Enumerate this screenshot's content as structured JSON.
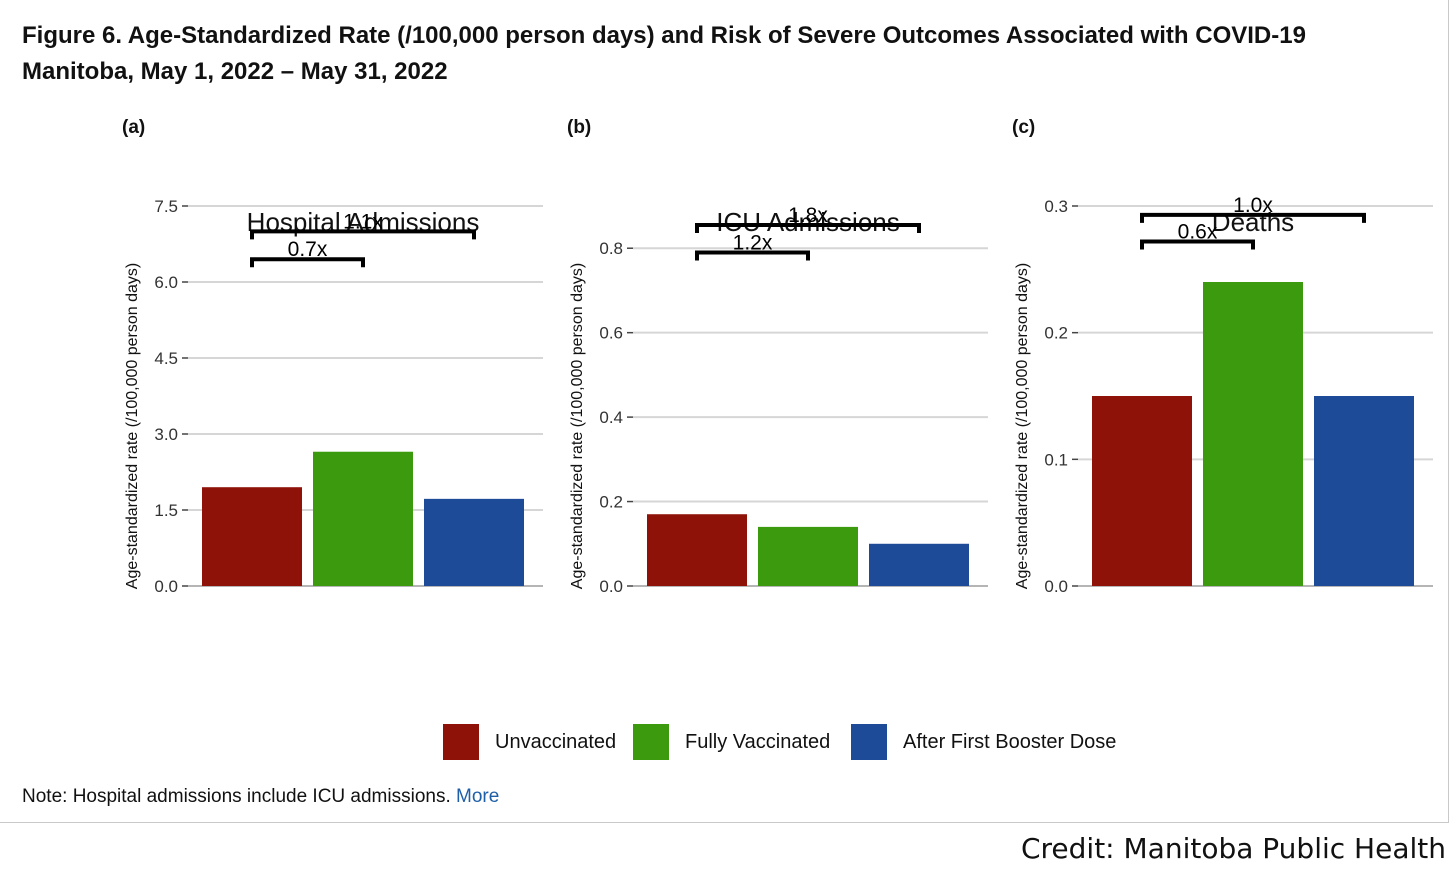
{
  "figure": {
    "title_line1": "Figure 6. Age-Standardized Rate (/100,000 person days) and Risk of Severe Outcomes Associated with COVID-19",
    "title_line2": "Manitoba, May 1, 2022 – May 31, 2022"
  },
  "legend": [
    {
      "label": "Unvaccinated",
      "color": "#8f1209"
    },
    {
      "label": "Fully Vaccinated",
      "color": "#3c9a0f"
    },
    {
      "label": "After First Booster Dose",
      "color": "#1d4b98"
    }
  ],
  "note": {
    "text": "Note: Hospital admissions include ICU admissions.",
    "link": "More"
  },
  "credit": "Credit: Manitoba Public Health",
  "chart_data": [
    {
      "type": "bar",
      "panel": "(a)",
      "title": "Hospital Admissions",
      "ylabel": "Age-standardized rate (/100,000 person days)",
      "categories": [
        "Unvaccinated",
        "Fully Vaccinated",
        "After First Booster Dose"
      ],
      "values": [
        1.95,
        2.65,
        1.72
      ],
      "ylim": [
        0,
        7.5
      ],
      "yticks": [
        0,
        1.5,
        3.0,
        4.5,
        6.0,
        7.5
      ],
      "ytick_labels": [
        "0.0",
        "1.5",
        "3.0",
        "4.5",
        "6.0",
        "7.5"
      ],
      "comparisons": [
        {
          "label": "0.7x",
          "from": 0,
          "to": 1,
          "y": 6.45,
          "tick": 6.45
        },
        {
          "label": "1.1x",
          "from": 0,
          "to": 2,
          "y": 7.0,
          "tick": 7.0
        }
      ],
      "grid": true
    },
    {
      "type": "bar",
      "panel": "(b)",
      "title": "ICU Admissions",
      "ylabel": "Age-standardized rate (/100,000 person days)",
      "categories": [
        "Unvaccinated",
        "Fully Vaccinated",
        "After First Booster Dose"
      ],
      "values": [
        0.17,
        0.14,
        0.1
      ],
      "ylim": [
        0,
        0.9
      ],
      "yticks": [
        0,
        0.2,
        0.4,
        0.6,
        0.8
      ],
      "ytick_labels": [
        "0.0",
        "0.2",
        "0.4",
        "0.6",
        "0.8"
      ],
      "comparisons": [
        {
          "label": "1.2x",
          "from": 0,
          "to": 1,
          "y": 0.79,
          "tick": 0.79
        },
        {
          "label": "1.8x",
          "from": 0,
          "to": 2,
          "y": 0.855,
          "tick": 0.855
        }
      ],
      "grid": true
    },
    {
      "type": "bar",
      "panel": "(c)",
      "title": "Deaths",
      "ylabel": "Age-standardized rate (/100,000 person days)",
      "categories": [
        "Unvaccinated",
        "Fully Vaccinated",
        "After First Booster Dose"
      ],
      "values": [
        0.15,
        0.24,
        0.15
      ],
      "ylim": [
        0,
        0.3
      ],
      "yticks": [
        0,
        0.1,
        0.2,
        0.3
      ],
      "ytick_labels": [
        "0.0",
        "0.1",
        "0.2",
        "0.3"
      ],
      "comparisons": [
        {
          "label": "0.6x",
          "from": 0,
          "to": 1,
          "y": 0.272,
          "tick": 0.272
        },
        {
          "label": "1.0x",
          "from": 0,
          "to": 2,
          "y": 0.293,
          "tick": 0.293
        }
      ],
      "grid": true
    }
  ]
}
